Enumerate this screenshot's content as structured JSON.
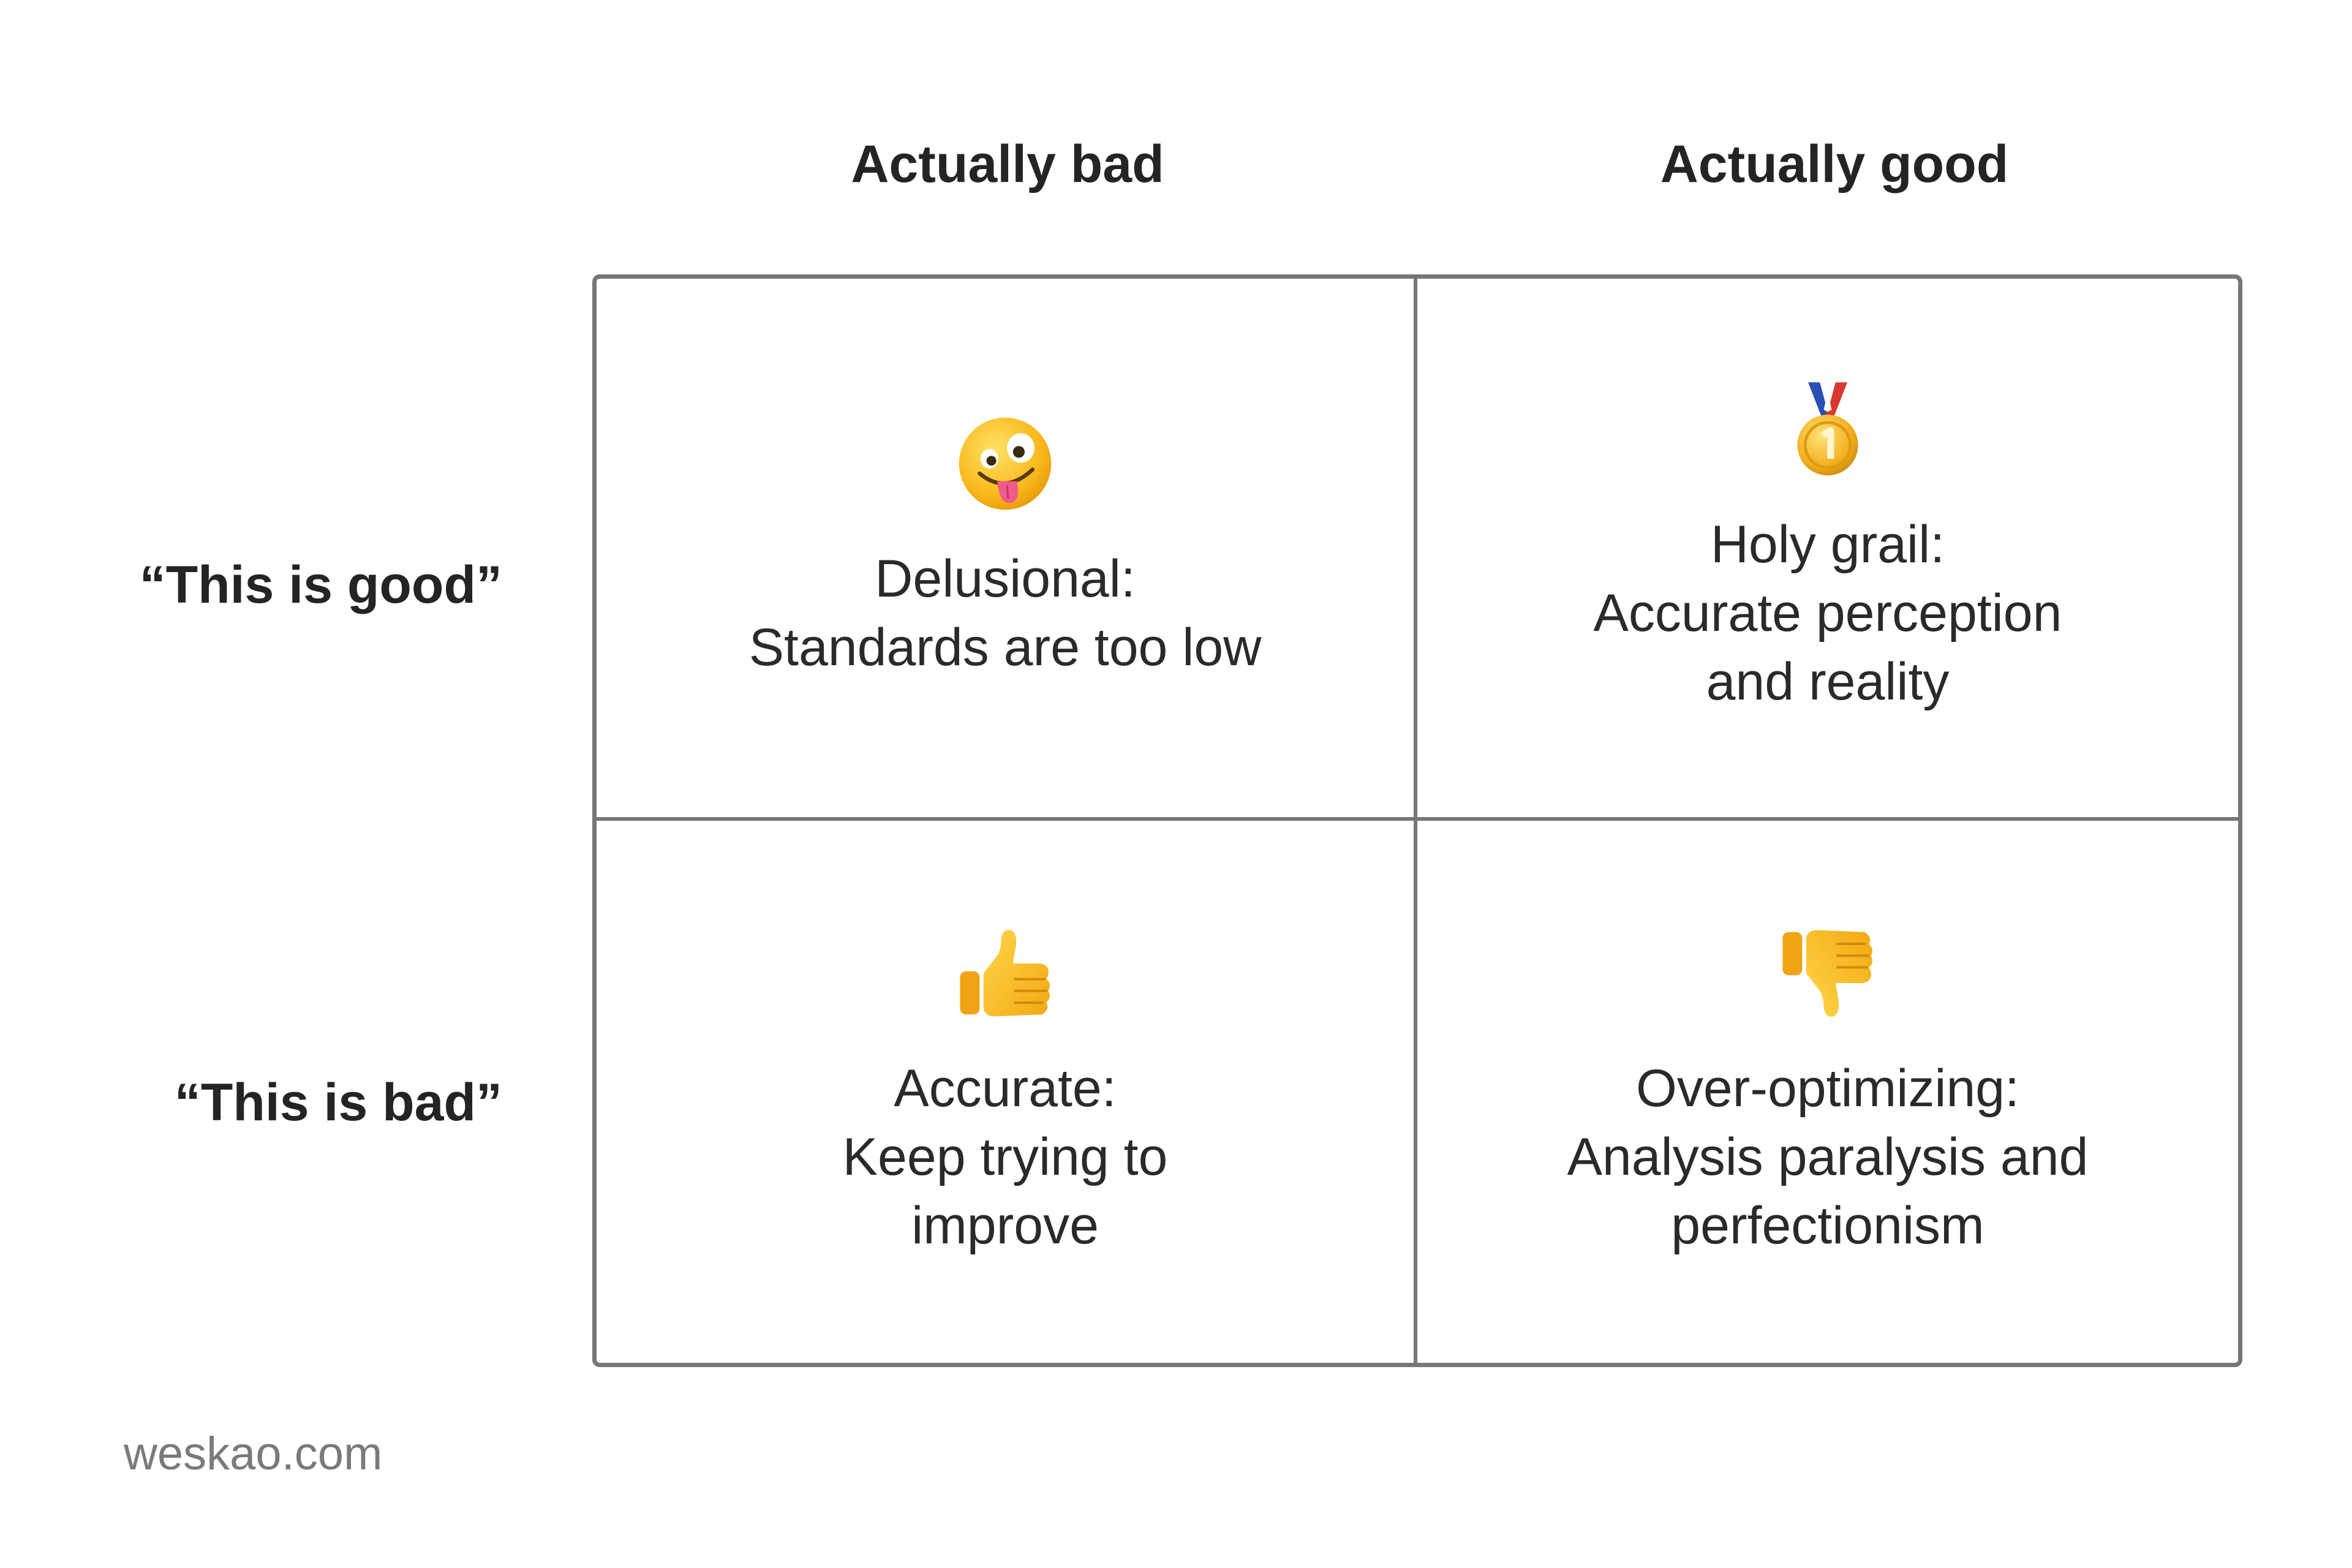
{
  "columns": {
    "bad": "Actually bad",
    "good": "Actually good"
  },
  "rows": {
    "good": "“This is good”",
    "bad": "“This is bad”"
  },
  "cells": [
    {
      "icon": "zany-face-icon",
      "title": "Delusional:",
      "lines": [
        "Standards are too low"
      ]
    },
    {
      "icon": "first-place-medal-icon",
      "title": "Holy grail:",
      "lines": [
        "Accurate perception",
        "and reality"
      ]
    },
    {
      "icon": "thumbs-up-icon",
      "title": "Accurate:",
      "lines": [
        "Keep trying to",
        "improve"
      ]
    },
    {
      "icon": "thumbs-down-icon",
      "title": "Over-optimizing:",
      "lines": [
        "Analysis paralysis and",
        "perfectionism"
      ]
    }
  ],
  "footer": "weskao.com"
}
